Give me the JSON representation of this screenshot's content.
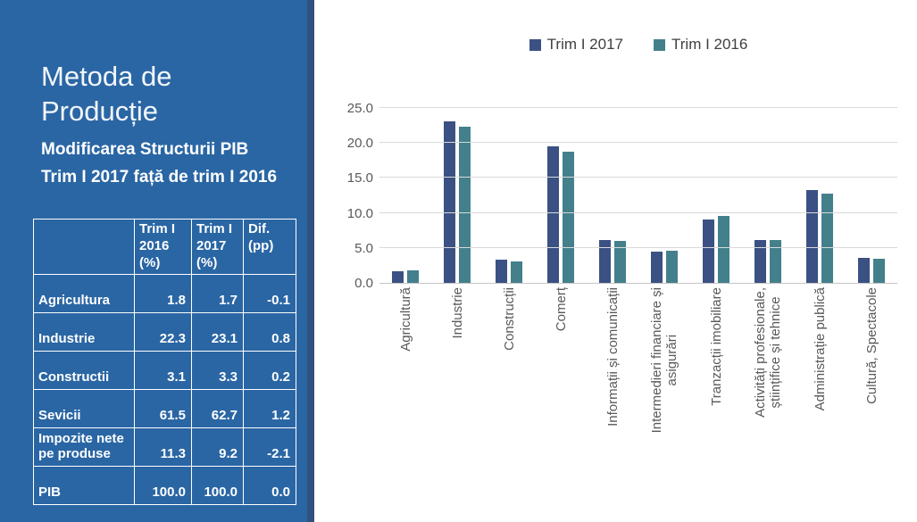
{
  "slide": {
    "title": "Metoda de Producție",
    "subtitle": "Modificarea Structurii PIB Trim I 2017 față de trim I 2016"
  },
  "colors": {
    "panel_blue": "#2A66A4",
    "panel_edge": "#30517E",
    "series_2017": "#3B5183",
    "series_2016": "#43808C",
    "axis_text": "#595959",
    "gridline": "#D9D9D9"
  },
  "table": {
    "headers": [
      "",
      "Trim I 2016 (%)",
      "Trim I 2017 (%)",
      "Dif. (pp)"
    ],
    "rows": [
      {
        "label": "Agricultura",
        "v2016": "1.8",
        "v2017": "1.7",
        "dif": "-0.1"
      },
      {
        "label": "Industrie",
        "v2016": "22.3",
        "v2017": "23.1",
        "dif": "0.8"
      },
      {
        "label": "Constructii",
        "v2016": "3.1",
        "v2017": "3.3",
        "dif": "0.2"
      },
      {
        "label": "Sevicii",
        "v2016": "61.5",
        "v2017": "62.7",
        "dif": "1.2"
      },
      {
        "label": "Impozite nete pe produse",
        "v2016": "11.3",
        "v2017": "9.2",
        "dif": "-2.1"
      },
      {
        "label": "PIB",
        "v2016": "100.0",
        "v2017": "100.0",
        "dif": "0.0"
      }
    ]
  },
  "chart_data": {
    "type": "bar",
    "title": "",
    "xlabel": "",
    "ylabel": "",
    "categories": [
      "Agricultură",
      "Industrie",
      "Construcții",
      "Comerț",
      "Informații și comunicații",
      "Intermedieri financiare și\nasigurări",
      "Tranzacții imobiliare",
      "Activități profesionale,\nștiințifice și tehnice",
      "Administrație publică",
      "Cultură, Spectacole"
    ],
    "series": [
      {
        "name": "Trim I 2017",
        "color": "#3B5183",
        "values": [
          1.7,
          23.1,
          3.3,
          19.5,
          6.1,
          4.5,
          9.0,
          6.1,
          13.3,
          3.6
        ]
      },
      {
        "name": "Trim I 2016",
        "color": "#43808C",
        "values": [
          1.8,
          22.3,
          3.1,
          18.8,
          6.0,
          4.6,
          9.6,
          6.1,
          12.7,
          3.4
        ]
      }
    ],
    "ylim": [
      0,
      25
    ],
    "ytick_step": 5,
    "ytick_labels": [
      "0.0",
      "5.0",
      "10.0",
      "15.0",
      "20.0",
      "25.0"
    ],
    "grid": true,
    "legend_position": "top"
  }
}
